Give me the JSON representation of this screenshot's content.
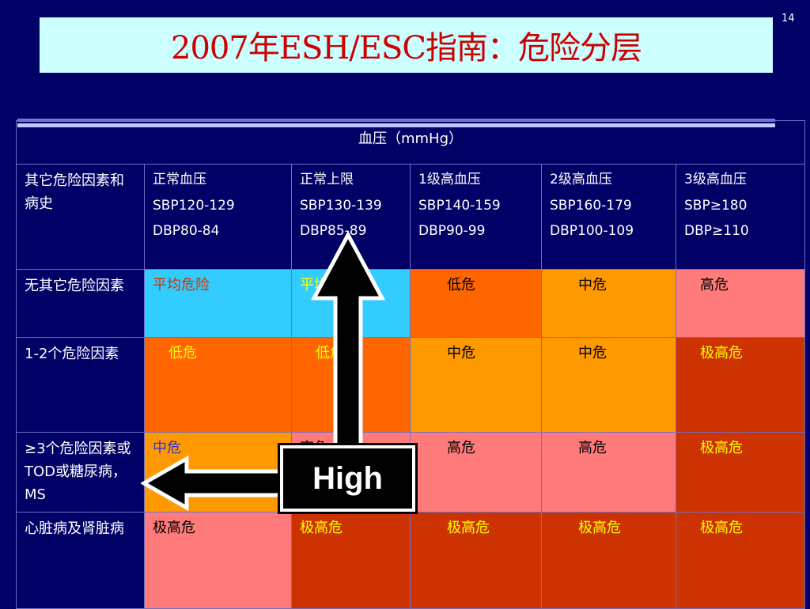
{
  "slide": {
    "title": "2007年ESH/ESC指南：危险分层",
    "page_number": "14"
  },
  "table": {
    "header": "血压（mmHg）",
    "corner_label": "其它危险因素和病史",
    "columns": [
      {
        "lines": [
          "正常血压",
          "SBP120-129",
          "DBP80-84"
        ]
      },
      {
        "lines": [
          "正常上限",
          "SBP130-139",
          "DBP85-89"
        ]
      },
      {
        "lines": [
          "1级高血压",
          "SBP140-159",
          "DBP90-99"
        ]
      },
      {
        "lines": [
          "2级高血压",
          "SBP160-179",
          "DBP100-109"
        ]
      },
      {
        "lines": [
          "3级高血压",
          "SBP≥180",
          "DBP≥110"
        ]
      }
    ],
    "rows": [
      {
        "label": "无其它危险因素",
        "cells": [
          "平均危险",
          "平均危险",
          "低危",
          "中危",
          "高危"
        ]
      },
      {
        "label": "1-2个危险因素",
        "cells": [
          "低危",
          "低危",
          "中危",
          "中危",
          "极高危"
        ]
      },
      {
        "label": "≥3个危险因素或TOD或糖尿病，MS",
        "cells": [
          "中危",
          "高危",
          "高危",
          "高危",
          "极高危"
        ]
      },
      {
        "label": "心脏病及肾脏病",
        "cells": [
          "极高危",
          "极高危",
          "极高危",
          "极高危",
          "极高危"
        ]
      }
    ]
  },
  "overlay": {
    "high_label": "High"
  },
  "colors": {
    "background": "#000066",
    "title_box": "#ccffff",
    "title_text": "#cc0000",
    "average_risk": "#33ccff",
    "low_risk": "#ff6600",
    "moderate_risk": "#ff9900",
    "high_risk": "#ff7b7b",
    "very_high_risk": "#cc3300"
  }
}
